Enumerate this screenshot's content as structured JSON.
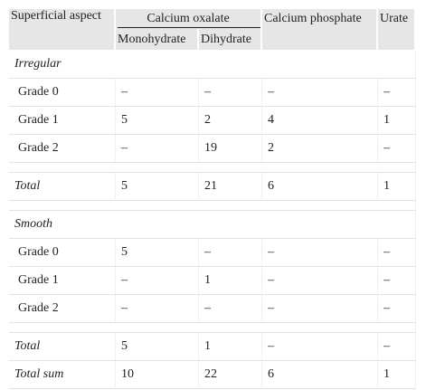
{
  "header": {
    "columns": [
      "Superficial aspect",
      "Calcium oxalate",
      "Calcium phosphate",
      "Urate"
    ],
    "subcolumns": [
      "Monohydrate",
      "Dihydrate"
    ]
  },
  "sections": [
    {
      "title": "Irregular",
      "rows": [
        {
          "label": "Grade 0",
          "cells": [
            "–",
            "–",
            "–",
            "–"
          ]
        },
        {
          "label": "Grade 1",
          "cells": [
            5,
            2,
            4,
            1
          ]
        },
        {
          "label": "Grade 2",
          "cells": [
            "–",
            19,
            2,
            "–"
          ]
        }
      ],
      "total": {
        "label": "Total",
        "cells": [
          5,
          21,
          6,
          1
        ]
      }
    },
    {
      "title": "Smooth",
      "rows": [
        {
          "label": "Grade 0",
          "cells": [
            5,
            "–",
            "–",
            "–"
          ]
        },
        {
          "label": "Grade 1",
          "cells": [
            "–",
            1,
            "–",
            "–"
          ]
        },
        {
          "label": "Grade 2",
          "cells": [
            "–",
            "–",
            "–",
            "–"
          ]
        }
      ],
      "total": {
        "label": "Total",
        "cells": [
          5,
          1,
          "–",
          "–"
        ]
      }
    }
  ],
  "total_sum": {
    "label": "Total sum",
    "cells": [
      10,
      22,
      6,
      1
    ]
  }
}
